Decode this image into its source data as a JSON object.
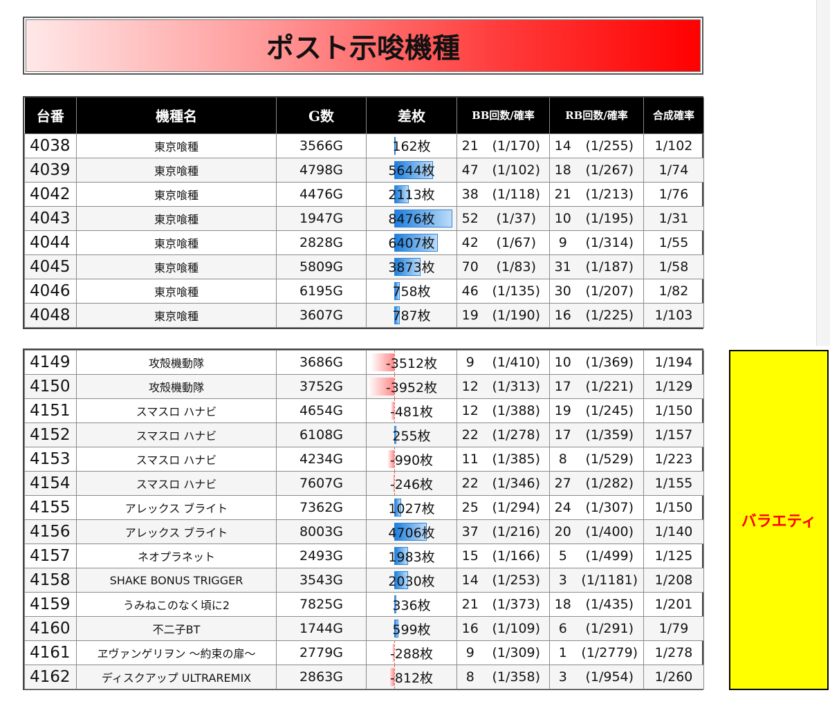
{
  "page": {
    "title": "ポスト示唆機種",
    "variety_label": "バラエティ"
  },
  "headers": [
    "台番",
    "機種名",
    "G数",
    "差枚",
    "BB回数/確率",
    "RB回数/確率",
    "合成確率"
  ],
  "diff_scale": {
    "max_positive": 8476,
    "max_negative": 3952
  },
  "colors": {
    "title_red": "#ff0000",
    "bar_blue": "#1b7fe0",
    "bar_red": "#ff8a8a",
    "variety_yellow": "#ffff00",
    "variety_text": "#ff0000"
  },
  "table1": [
    {
      "no": "4038",
      "name": "東京喰種",
      "games": "3566G",
      "diff": 162,
      "diff_text": "162枚",
      "bb": "21",
      "bb_rate": "(1/170)",
      "rb": "14",
      "rb_rate": "(1/255)",
      "total": "1/102"
    },
    {
      "no": "4039",
      "name": "東京喰種",
      "games": "4798G",
      "diff": 5644,
      "diff_text": "5644枚",
      "bb": "47",
      "bb_rate": "(1/102)",
      "rb": "18",
      "rb_rate": "(1/267)",
      "total": "1/74"
    },
    {
      "no": "4042",
      "name": "東京喰種",
      "games": "4476G",
      "diff": 2113,
      "diff_text": "2113枚",
      "bb": "38",
      "bb_rate": "(1/118)",
      "rb": "21",
      "rb_rate": "(1/213)",
      "total": "1/76"
    },
    {
      "no": "4043",
      "name": "東京喰種",
      "games": "1947G",
      "diff": 8476,
      "diff_text": "8476枚",
      "bb": "52",
      "bb_rate": "(1/37)",
      "rb": "10",
      "rb_rate": "(1/195)",
      "total": "1/31"
    },
    {
      "no": "4044",
      "name": "東京喰種",
      "games": "2828G",
      "diff": 6407,
      "diff_text": "6407枚",
      "bb": "42",
      "bb_rate": "(1/67)",
      "rb": "9",
      "rb_rate": "(1/314)",
      "total": "1/55"
    },
    {
      "no": "4045",
      "name": "東京喰種",
      "games": "5809G",
      "diff": 3873,
      "diff_text": "3873枚",
      "bb": "70",
      "bb_rate": "(1/83)",
      "rb": "31",
      "rb_rate": "(1/187)",
      "total": "1/58"
    },
    {
      "no": "4046",
      "name": "東京喰種",
      "games": "6195G",
      "diff": 758,
      "diff_text": "758枚",
      "bb": "46",
      "bb_rate": "(1/135)",
      "rb": "30",
      "rb_rate": "(1/207)",
      "total": "1/82"
    },
    {
      "no": "4048",
      "name": "東京喰種",
      "games": "3607G",
      "diff": 787,
      "diff_text": "787枚",
      "bb": "19",
      "bb_rate": "(1/190)",
      "rb": "16",
      "rb_rate": "(1/225)",
      "total": "1/103"
    }
  ],
  "table2": [
    {
      "no": "4149",
      "name": "攻殻機動隊",
      "games": "3686G",
      "diff": -3512,
      "diff_text": "-3512枚",
      "bb": "9",
      "bb_rate": "(1/410)",
      "rb": "10",
      "rb_rate": "(1/369)",
      "total": "1/194"
    },
    {
      "no": "4150",
      "name": "攻殻機動隊",
      "games": "3752G",
      "diff": -3952,
      "diff_text": "-3952枚",
      "bb": "12",
      "bb_rate": "(1/313)",
      "rb": "17",
      "rb_rate": "(1/221)",
      "total": "1/129"
    },
    {
      "no": "4151",
      "name": "スマスロ ハナビ",
      "games": "4654G",
      "diff": -481,
      "diff_text": "-481枚",
      "bb": "12",
      "bb_rate": "(1/388)",
      "rb": "19",
      "rb_rate": "(1/245)",
      "total": "1/150"
    },
    {
      "no": "4152",
      "name": "スマスロ ハナビ",
      "games": "6108G",
      "diff": 255,
      "diff_text": "255枚",
      "bb": "22",
      "bb_rate": "(1/278)",
      "rb": "17",
      "rb_rate": "(1/359)",
      "total": "1/157"
    },
    {
      "no": "4153",
      "name": "スマスロ ハナビ",
      "games": "4234G",
      "diff": -990,
      "diff_text": "-990枚",
      "bb": "11",
      "bb_rate": "(1/385)",
      "rb": "8",
      "rb_rate": "(1/529)",
      "total": "1/223"
    },
    {
      "no": "4154",
      "name": "スマスロ ハナビ",
      "games": "7607G",
      "diff": -246,
      "diff_text": "-246枚",
      "bb": "22",
      "bb_rate": "(1/346)",
      "rb": "27",
      "rb_rate": "(1/282)",
      "total": "1/155"
    },
    {
      "no": "4155",
      "name": "アレックス ブライト",
      "games": "7362G",
      "diff": 1027,
      "diff_text": "1027枚",
      "bb": "25",
      "bb_rate": "(1/294)",
      "rb": "24",
      "rb_rate": "(1/307)",
      "total": "1/150"
    },
    {
      "no": "4156",
      "name": "アレックス ブライト",
      "games": "8003G",
      "diff": 4706,
      "diff_text": "4706枚",
      "bb": "37",
      "bb_rate": "(1/216)",
      "rb": "20",
      "rb_rate": "(1/400)",
      "total": "1/140"
    },
    {
      "no": "4157",
      "name": "ネオプラネット",
      "games": "2493G",
      "diff": 1983,
      "diff_text": "1983枚",
      "bb": "15",
      "bb_rate": "(1/166)",
      "rb": "5",
      "rb_rate": "(1/499)",
      "total": "1/125"
    },
    {
      "no": "4158",
      "name": "SHAKE BONUS TRIGGER",
      "games": "3543G",
      "diff": 2030,
      "diff_text": "2030枚",
      "bb": "14",
      "bb_rate": "(1/253)",
      "rb": "3",
      "rb_rate": "(1/1181)",
      "total": "1/208"
    },
    {
      "no": "4159",
      "name": "うみねこのなく頃に2",
      "games": "7825G",
      "diff": 336,
      "diff_text": "336枚",
      "bb": "21",
      "bb_rate": "(1/373)",
      "rb": "18",
      "rb_rate": "(1/435)",
      "total": "1/201"
    },
    {
      "no": "4160",
      "name": "不二子BT",
      "games": "1744G",
      "diff": 599,
      "diff_text": "599枚",
      "bb": "16",
      "bb_rate": "(1/109)",
      "rb": "6",
      "rb_rate": "(1/291)",
      "total": "1/79"
    },
    {
      "no": "4161",
      "name": "ヱヴァンゲリヲン ～約束の扉～",
      "games": "2779G",
      "diff": -288,
      "diff_text": "-288枚",
      "bb": "9",
      "bb_rate": "(1/309)",
      "rb": "1",
      "rb_rate": "(1/2779)",
      "total": "1/278"
    },
    {
      "no": "4162",
      "name": "ディスクアップ ULTRAREMIX",
      "games": "2863G",
      "diff": -812,
      "diff_text": "-812枚",
      "bb": "8",
      "bb_rate": "(1/358)",
      "rb": "3",
      "rb_rate": "(1/954)",
      "total": "1/260"
    }
  ]
}
